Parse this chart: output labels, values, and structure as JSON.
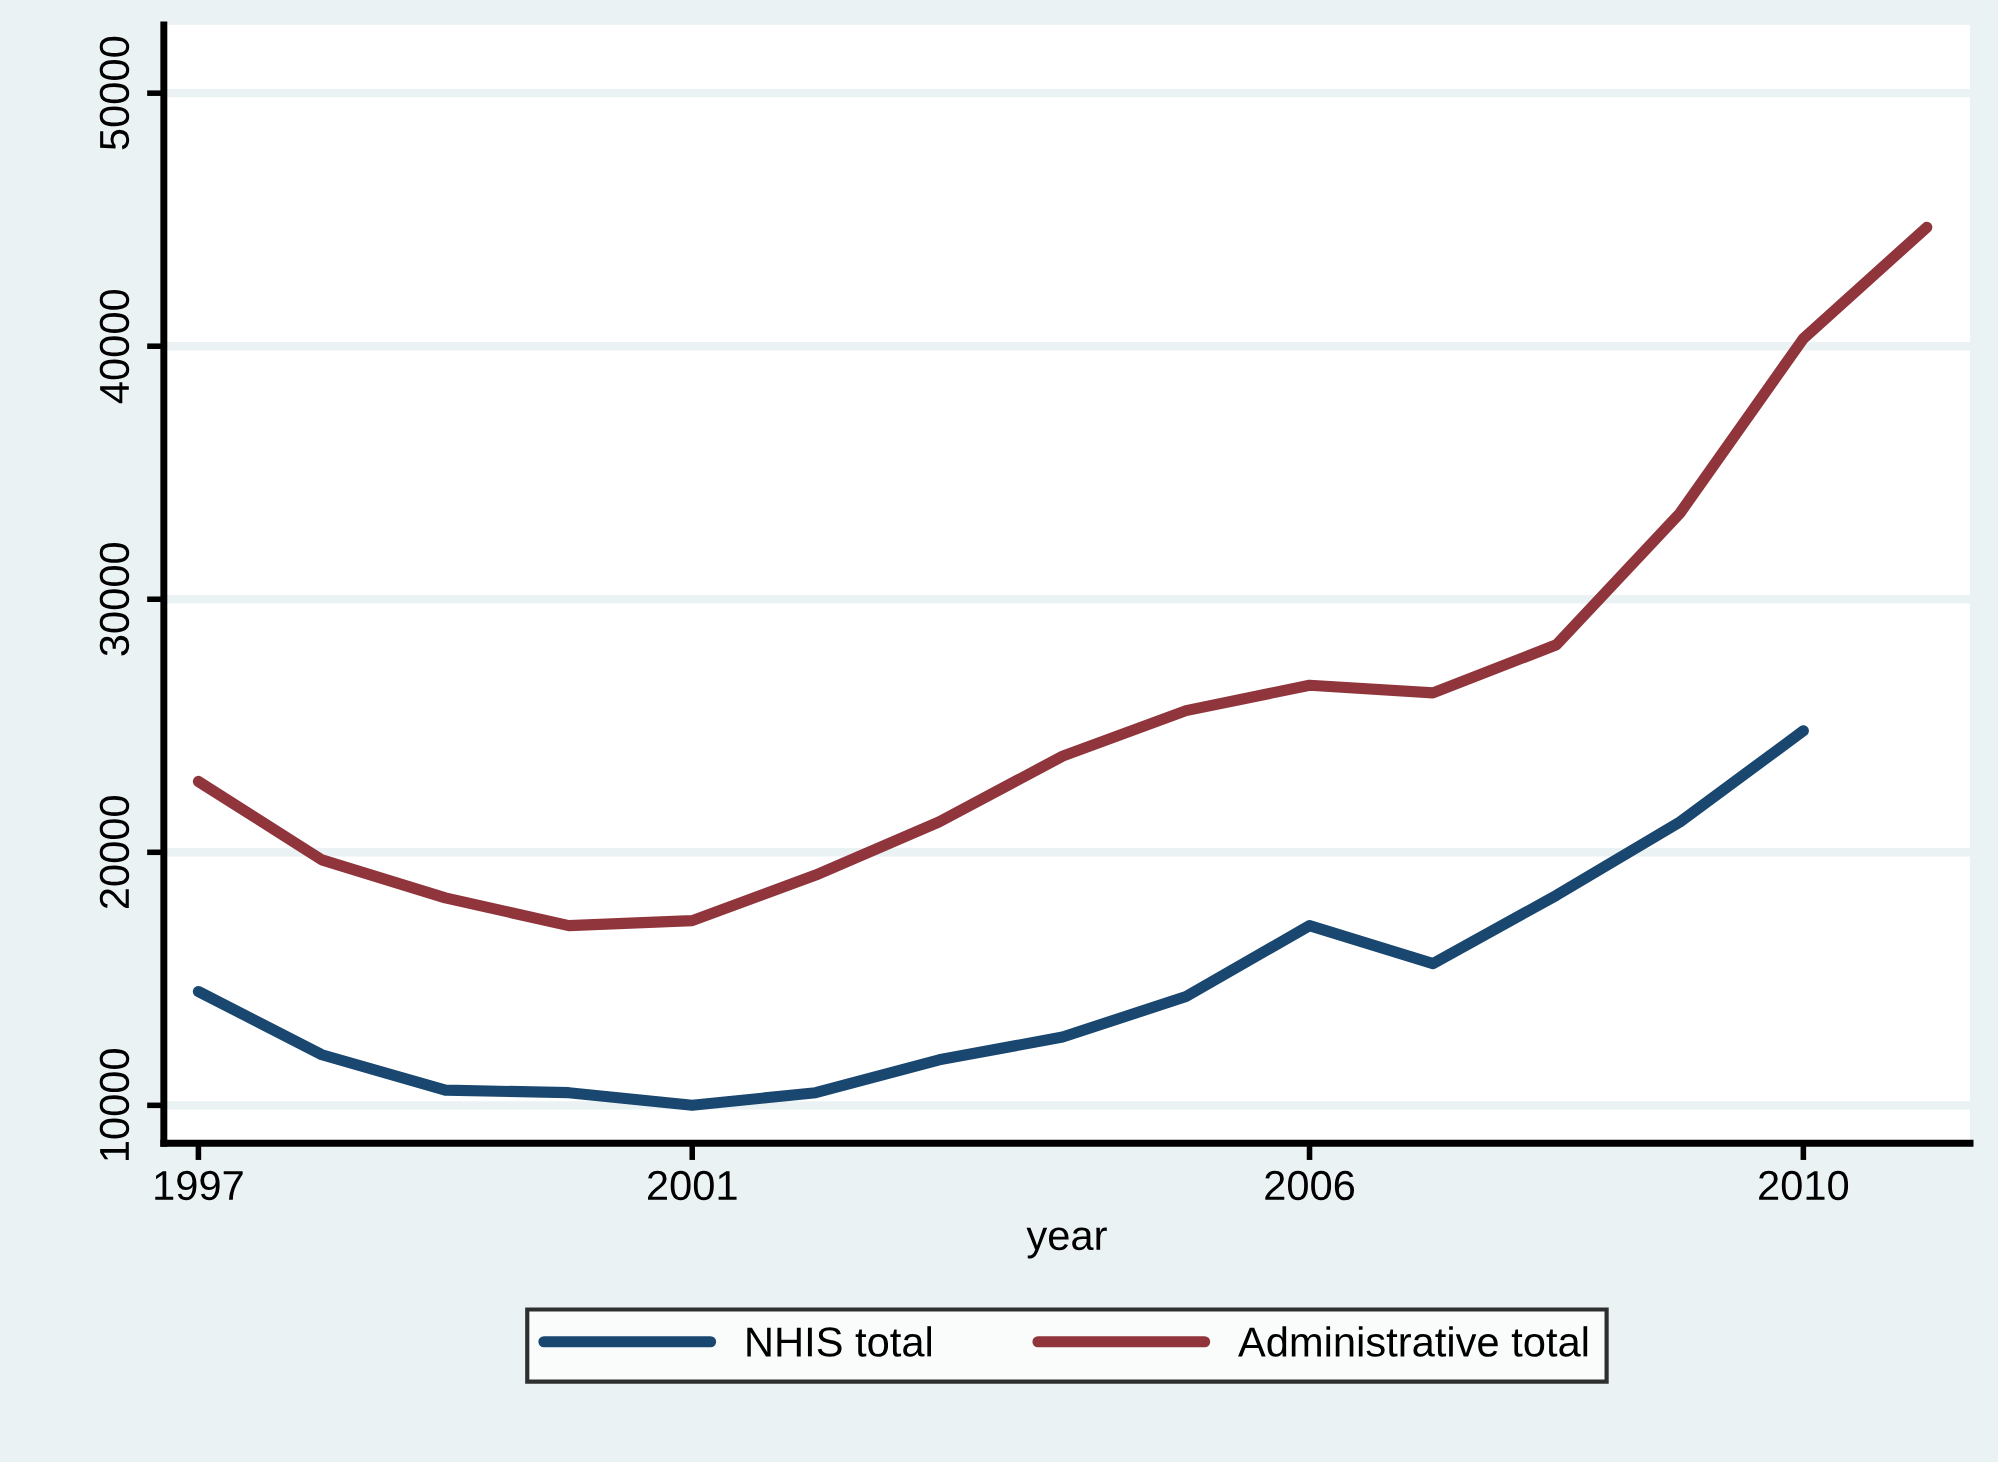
{
  "chart_data": {
    "type": "line",
    "xlabel": "year",
    "x": [
      1997,
      1998,
      1999,
      2000,
      2001,
      2002,
      2003,
      2004,
      2005,
      2006,
      2007,
      2008,
      2009,
      2010,
      2011
    ],
    "series": [
      {
        "name": "NHIS total",
        "color": "#1a476f",
        "values": [
          14500,
          12000,
          10600,
          10500,
          10000,
          10500,
          11800,
          12700,
          14300,
          17100,
          15600,
          18300,
          21200,
          24800,
          null
        ]
      },
      {
        "name": "Administrative total",
        "color": "#90353b",
        "values": [
          22800,
          19700,
          18200,
          17100,
          17300,
          19100,
          21200,
          23800,
          25600,
          26600,
          26300,
          28200,
          33400,
          40300,
          44700
        ]
      }
    ],
    "xlim": [
      1996.72,
      2011.35
    ],
    "xticks": [
      1997,
      2001,
      2006,
      2010
    ],
    "ylim": [
      8500,
      52700
    ],
    "yticks": [
      10000,
      20000,
      30000,
      40000,
      50000
    ],
    "grid": "y",
    "legend": "bottom",
    "marker": "none",
    "line_style": "solid"
  }
}
